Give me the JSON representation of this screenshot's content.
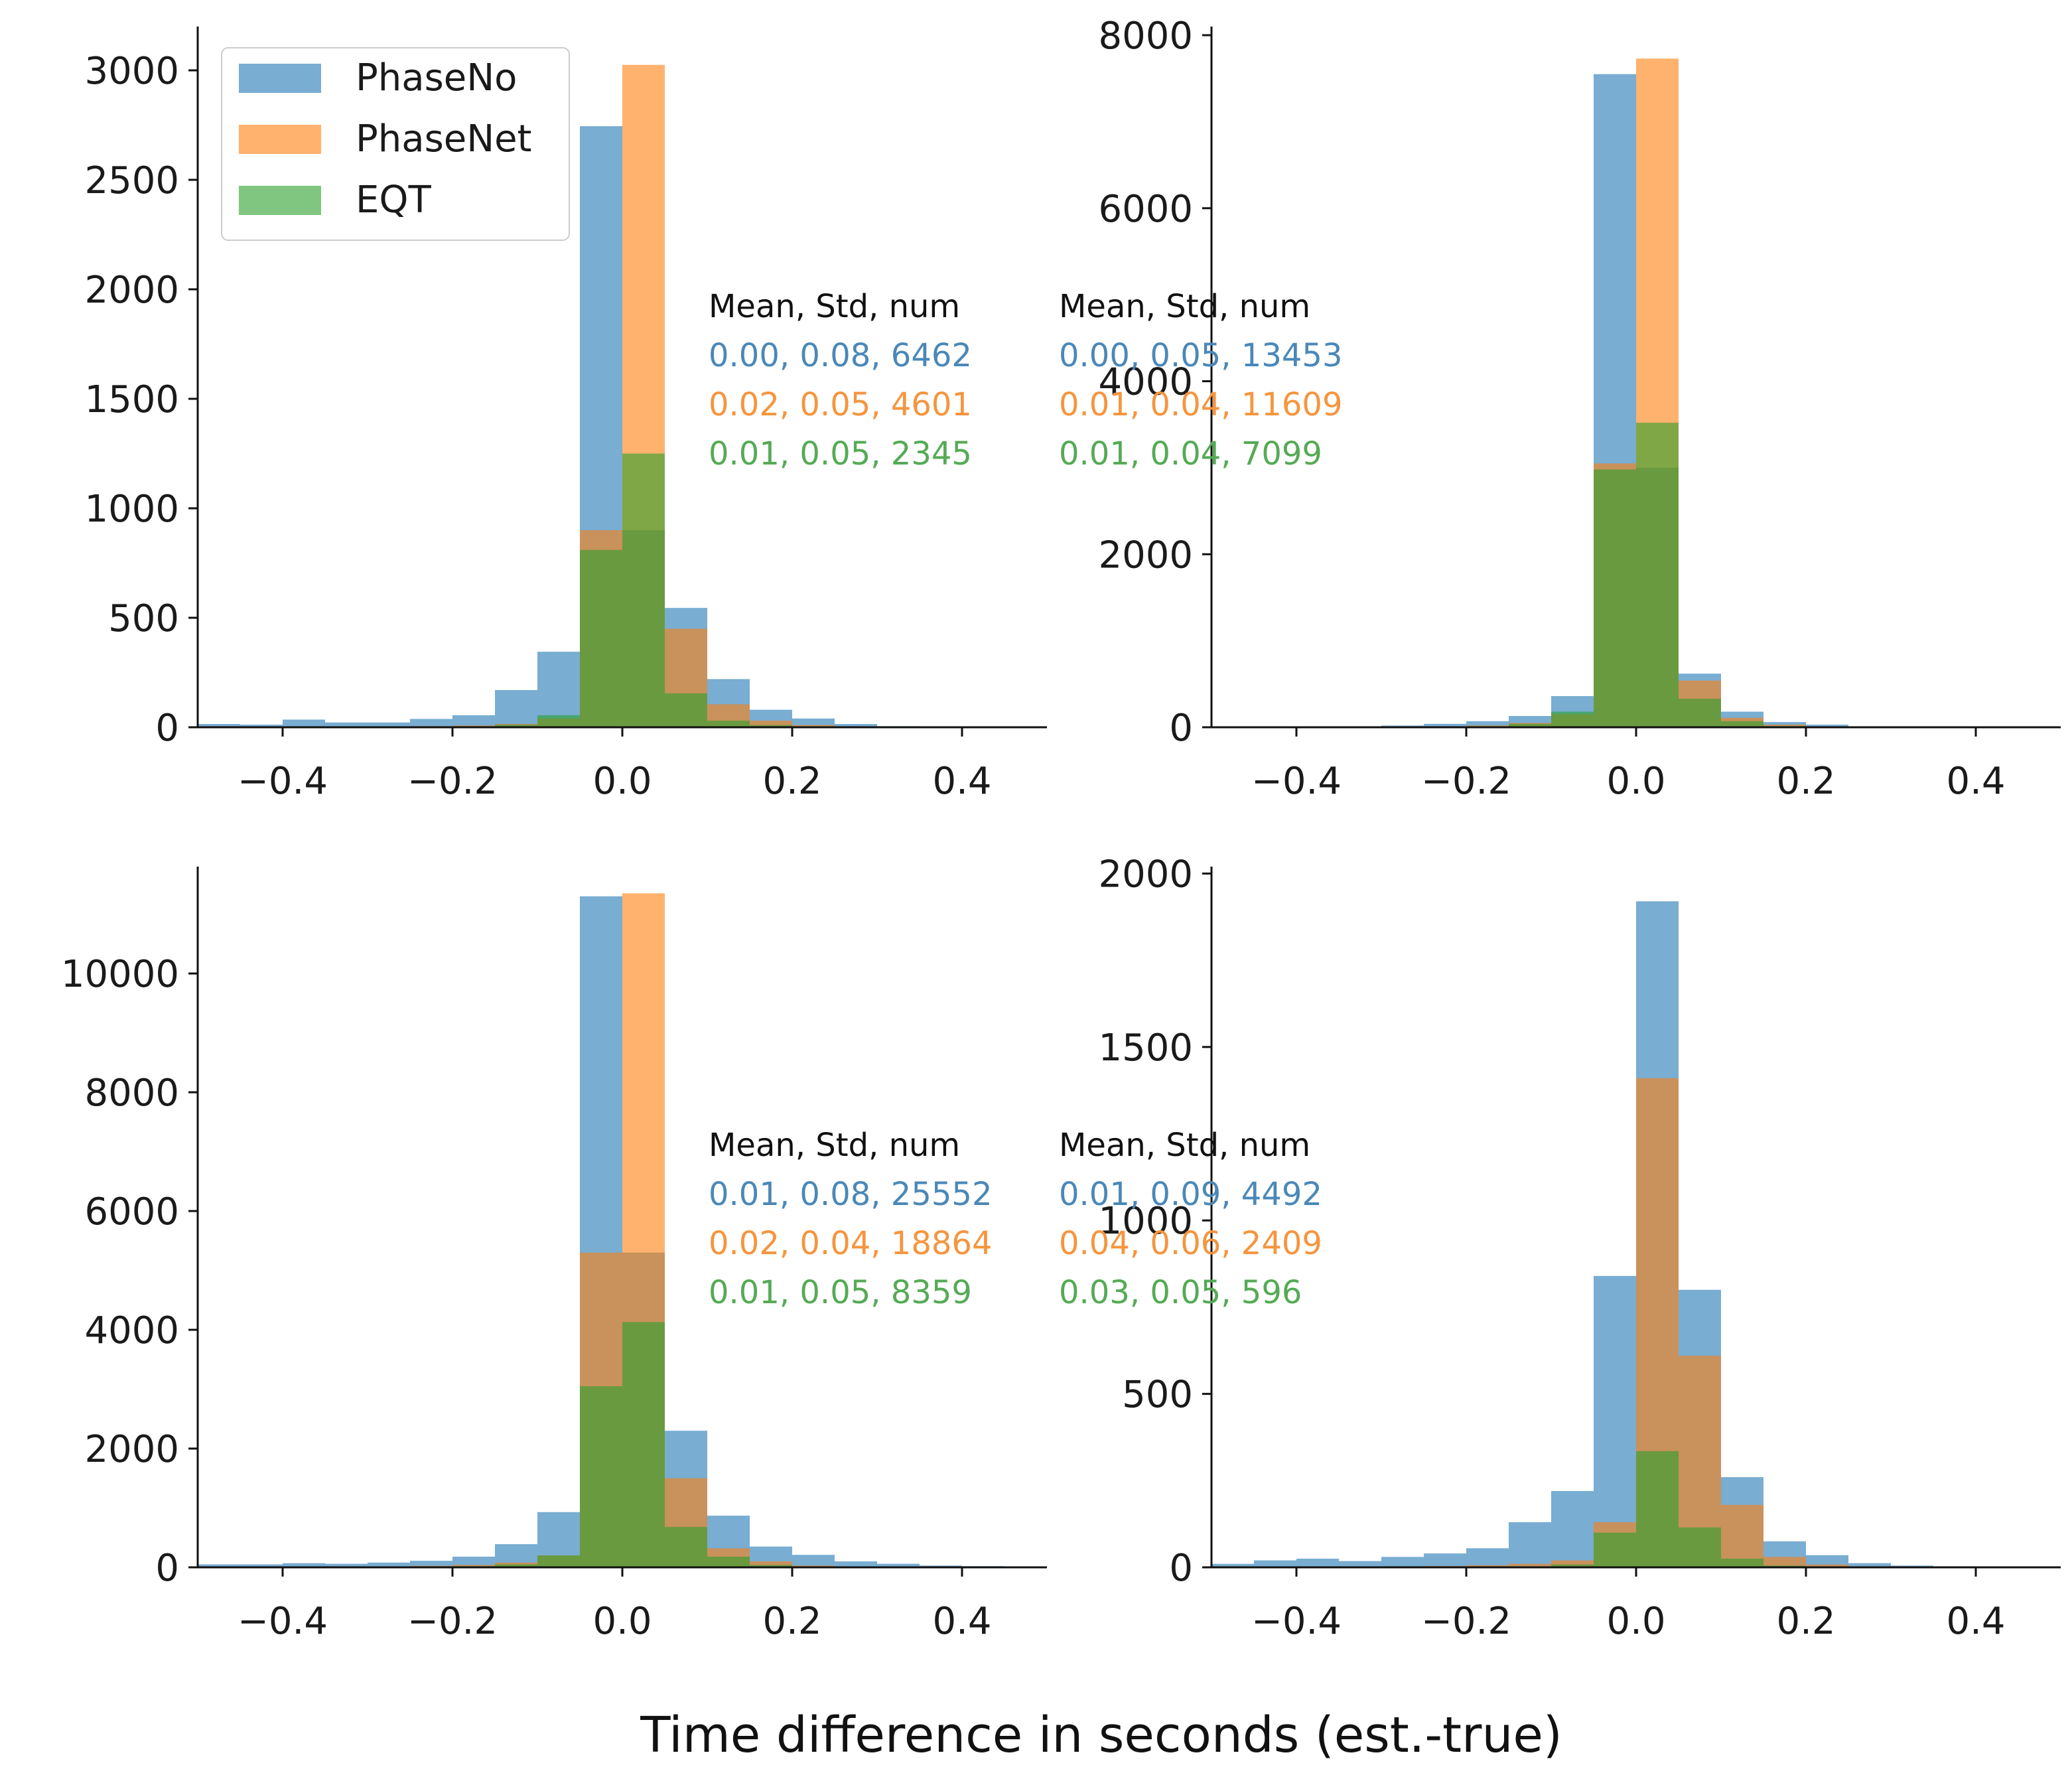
{
  "colors": {
    "PhaseNo": "#1f77b4",
    "PhaseNet": "#ff7f0e",
    "EQT": "#2ca02c",
    "PhaseNo_text": "#4a88b8",
    "PhaseNet_text": "#f5953e",
    "EQT_text": "#55aa55"
  },
  "chart_data": {
    "type": "bar",
    "xlabel": "Time difference in seconds (est.-true)",
    "legend": {
      "placement": "top-left of first panel",
      "entries": [
        "PhaseNo",
        "PhaseNet",
        "EQT"
      ]
    },
    "bin_edges": [
      -0.5,
      -0.45,
      -0.4,
      -0.35,
      -0.3,
      -0.25,
      -0.2,
      -0.15,
      -0.1,
      -0.05,
      0.0,
      0.05,
      0.1,
      0.15,
      0.2,
      0.25,
      0.3,
      0.35,
      0.4,
      0.45,
      0.5
    ],
    "xlim": [
      -0.5,
      0.5
    ],
    "xticks": [
      -0.4,
      -0.2,
      0.0,
      0.2,
      0.4
    ],
    "xtick_labels": [
      "−0.4",
      "−0.2",
      "0.0",
      "0.2",
      "0.4"
    ],
    "panels": [
      {
        "ylim": [
          0,
          3200
        ],
        "yticks": [
          0,
          500,
          1000,
          1500,
          2000,
          2500,
          3000
        ],
        "stats_header": "Mean, Std, num",
        "series": [
          {
            "name": "PhaseNo",
            "stats": "0.00, 0.08, 6462",
            "values": [
              15,
              12,
              35,
              22,
              22,
              38,
              55,
              170,
              345,
              2745,
              900,
              545,
              220,
              80,
              40,
              15,
              5,
              3,
              3,
              2
            ]
          },
          {
            "name": "PhaseNet",
            "stats": "0.02, 0.05, 4601",
            "values": [
              2,
              2,
              2,
              2,
              3,
              5,
              8,
              15,
              40,
              900,
              3025,
              450,
              105,
              30,
              10,
              3,
              2,
              1,
              1,
              1
            ]
          },
          {
            "name": "EQT",
            "stats": "0.01, 0.05, 2345",
            "values": [
              1,
              1,
              1,
              1,
              2,
              3,
              5,
              12,
              55,
              810,
              1250,
              155,
              30,
              10,
              3,
              2,
              1,
              1,
              1,
              1
            ]
          }
        ]
      },
      {
        "ylim": [
          0,
          8100
        ],
        "yticks": [
          0,
          2000,
          4000,
          6000,
          8000
        ],
        "stats_header": "Mean, Std, num",
        "series": [
          {
            "name": "PhaseNo",
            "stats": "0.00, 0.05, 13453",
            "values": [
              5,
              5,
              5,
              10,
              20,
              40,
              70,
              130,
              360,
              7550,
              3000,
              620,
              180,
              60,
              30,
              10,
              5,
              3,
              2,
              2
            ]
          },
          {
            "name": "PhaseNet",
            "stats": "0.01, 0.04, 11609",
            "values": [
              2,
              2,
              3,
              4,
              6,
              10,
              20,
              50,
              150,
              3050,
              7730,
              540,
              110,
              30,
              10,
              4,
              2,
              1,
              1,
              1
            ]
          },
          {
            "name": "EQT",
            "stats": "0.01, 0.04, 7099",
            "values": [
              1,
              1,
              2,
              2,
              3,
              5,
              12,
              40,
              180,
              2980,
              3520,
              330,
              70,
              15,
              5,
              2,
              1,
              1,
              1,
              1
            ]
          }
        ]
      },
      {
        "ylim": [
          0,
          11800
        ],
        "yticks": [
          0,
          2000,
          4000,
          6000,
          8000,
          10000
        ],
        "stats_header": "Mean, Std, num",
        "series": [
          {
            "name": "PhaseNo",
            "stats": "0.01, 0.08, 25552",
            "values": [
              50,
              50,
              70,
              60,
              80,
              110,
              180,
              390,
              930,
              11300,
              5300,
              2300,
              870,
              350,
              210,
              100,
              60,
              30,
              20,
              10
            ]
          },
          {
            "name": "PhaseNet",
            "stats": "0.02, 0.04, 18864",
            "values": [
              5,
              5,
              8,
              10,
              15,
              25,
              40,
              80,
              200,
              5300,
              11350,
              1500,
              320,
              100,
              30,
              10,
              5,
              3,
              2,
              1
            ]
          },
          {
            "name": "EQT",
            "stats": "0.01, 0.05, 8359",
            "values": [
              2,
              2,
              3,
              5,
              8,
              12,
              20,
              50,
              200,
              3050,
              4130,
              680,
              180,
              40,
              10,
              5,
              2,
              1,
              1,
              1
            ]
          }
        ]
      },
      {
        "ylim": [
          0,
          2020
        ],
        "yticks": [
          0,
          500,
          1000,
          1500,
          2000
        ],
        "stats_header": "Mean, Std, num",
        "series": [
          {
            "name": "PhaseNo",
            "stats": "0.01, 0.09, 4492",
            "values": [
              10,
              20,
              25,
              18,
              30,
              40,
              55,
              130,
              220,
              840,
              1920,
              800,
              260,
              75,
              35,
              12,
              5,
              3,
              2,
              1
            ]
          },
          {
            "name": "PhaseNet",
            "stats": "0.04, 0.06, 2409",
            "values": [
              2,
              2,
              2,
              2,
              3,
              4,
              6,
              10,
              20,
              130,
              1410,
              610,
              180,
              30,
              8,
              3,
              1,
              1,
              1,
              1
            ]
          },
          {
            "name": "EQT",
            "stats": "0.03, 0.05, 596",
            "values": [
              1,
              1,
              1,
              1,
              1,
              1,
              2,
              3,
              8,
              100,
              335,
              115,
              25,
              5,
              2,
              1,
              1,
              1,
              1,
              1
            ]
          }
        ]
      }
    ]
  }
}
